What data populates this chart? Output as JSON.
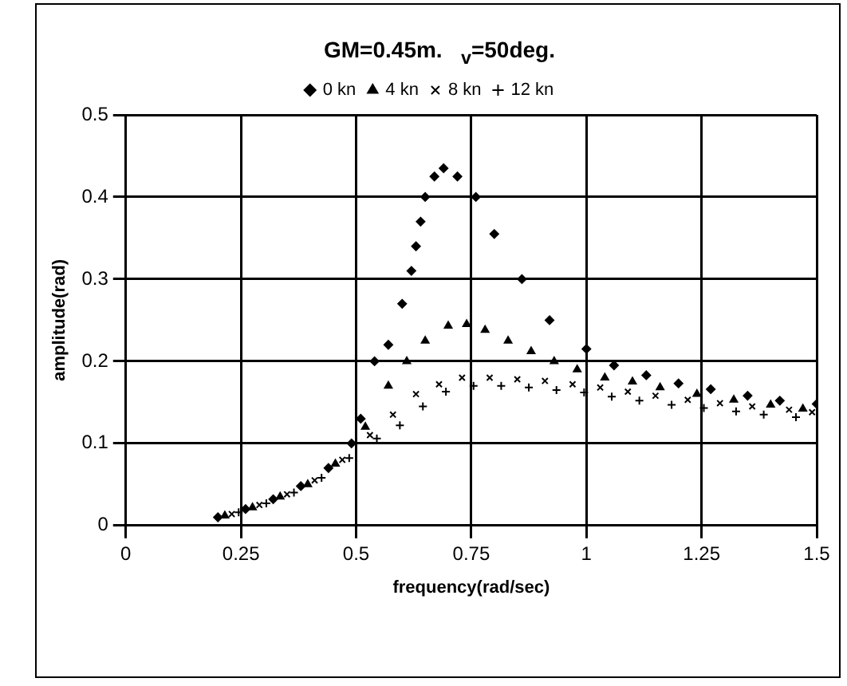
{
  "chart_data": {
    "type": "scatter",
    "title": "GM=0.45m.   $_{v}$=50deg.",
    "xlabel": "frequency(rad/sec)",
    "ylabel": "amplitude(rad)",
    "xlim": [
      0,
      1.5
    ],
    "xticks": [
      0,
      0.25,
      0.5,
      0.75,
      1,
      1.25,
      1.5
    ],
    "ylim": [
      0,
      0.5
    ],
    "yticks": [
      0,
      0.1,
      0.2,
      0.3,
      0.4,
      0.5
    ],
    "grid": true,
    "legend": "top",
    "series": [
      {
        "name": "0 kn",
        "color": "#000000",
        "marker": "diamond",
        "x": [
          0.2,
          0.26,
          0.32,
          0.38,
          0.44,
          0.49,
          0.51,
          0.54,
          0.57,
          0.6,
          0.62,
          0.63,
          0.64,
          0.65,
          0.67,
          0.69,
          0.72,
          0.76,
          0.8,
          0.86,
          0.92,
          1.0,
          1.06,
          1.13,
          1.2,
          1.27,
          1.35,
          1.42,
          1.5
        ],
        "values": [
          0.01,
          0.02,
          0.032,
          0.048,
          0.07,
          0.1,
          0.13,
          0.2,
          0.22,
          0.27,
          0.31,
          0.34,
          0.37,
          0.4,
          0.425,
          0.435,
          0.425,
          0.4,
          0.355,
          0.3,
          0.25,
          0.215,
          0.195,
          0.183,
          0.173,
          0.166,
          0.158,
          0.152,
          0.148
        ]
      },
      {
        "name": "4 kn",
        "color": "#000000",
        "marker": "triangle",
        "x": [
          0.215,
          0.275,
          0.335,
          0.395,
          0.455,
          0.52,
          0.57,
          0.61,
          0.65,
          0.7,
          0.74,
          0.78,
          0.83,
          0.88,
          0.93,
          0.98,
          1.04,
          1.1,
          1.16,
          1.24,
          1.32,
          1.4,
          1.47
        ],
        "values": [
          0.012,
          0.022,
          0.035,
          0.05,
          0.075,
          0.12,
          0.17,
          0.2,
          0.225,
          0.243,
          0.245,
          0.238,
          0.225,
          0.212,
          0.2,
          0.19,
          0.18,
          0.175,
          0.168,
          0.16,
          0.153,
          0.147,
          0.142
        ]
      },
      {
        "name": "8 kn",
        "color": "#000000",
        "marker": "cross",
        "x": [
          0.23,
          0.29,
          0.35,
          0.41,
          0.47,
          0.53,
          0.58,
          0.63,
          0.68,
          0.73,
          0.79,
          0.85,
          0.91,
          0.97,
          1.03,
          1.09,
          1.15,
          1.22,
          1.29,
          1.36,
          1.44,
          1.49
        ],
        "values": [
          0.014,
          0.025,
          0.038,
          0.055,
          0.08,
          0.11,
          0.135,
          0.16,
          0.172,
          0.18,
          0.18,
          0.178,
          0.176,
          0.172,
          0.168,
          0.163,
          0.158,
          0.153,
          0.149,
          0.145,
          0.141,
          0.138
        ]
      },
      {
        "name": "12 kn",
        "color": "#000000",
        "marker": "cross",
        "x": [
          0.245,
          0.305,
          0.365,
          0.425,
          0.485,
          0.545,
          0.595,
          0.645,
          0.695,
          0.755,
          0.815,
          0.875,
          0.935,
          0.995,
          1.055,
          1.115,
          1.185,
          1.255,
          1.325,
          1.385,
          1.455
        ],
        "values": [
          0.016,
          0.027,
          0.04,
          0.058,
          0.082,
          0.106,
          0.122,
          0.145,
          0.163,
          0.17,
          0.17,
          0.168,
          0.165,
          0.162,
          0.157,
          0.152,
          0.147,
          0.143,
          0.139,
          0.135,
          0.132
        ]
      }
    ]
  }
}
